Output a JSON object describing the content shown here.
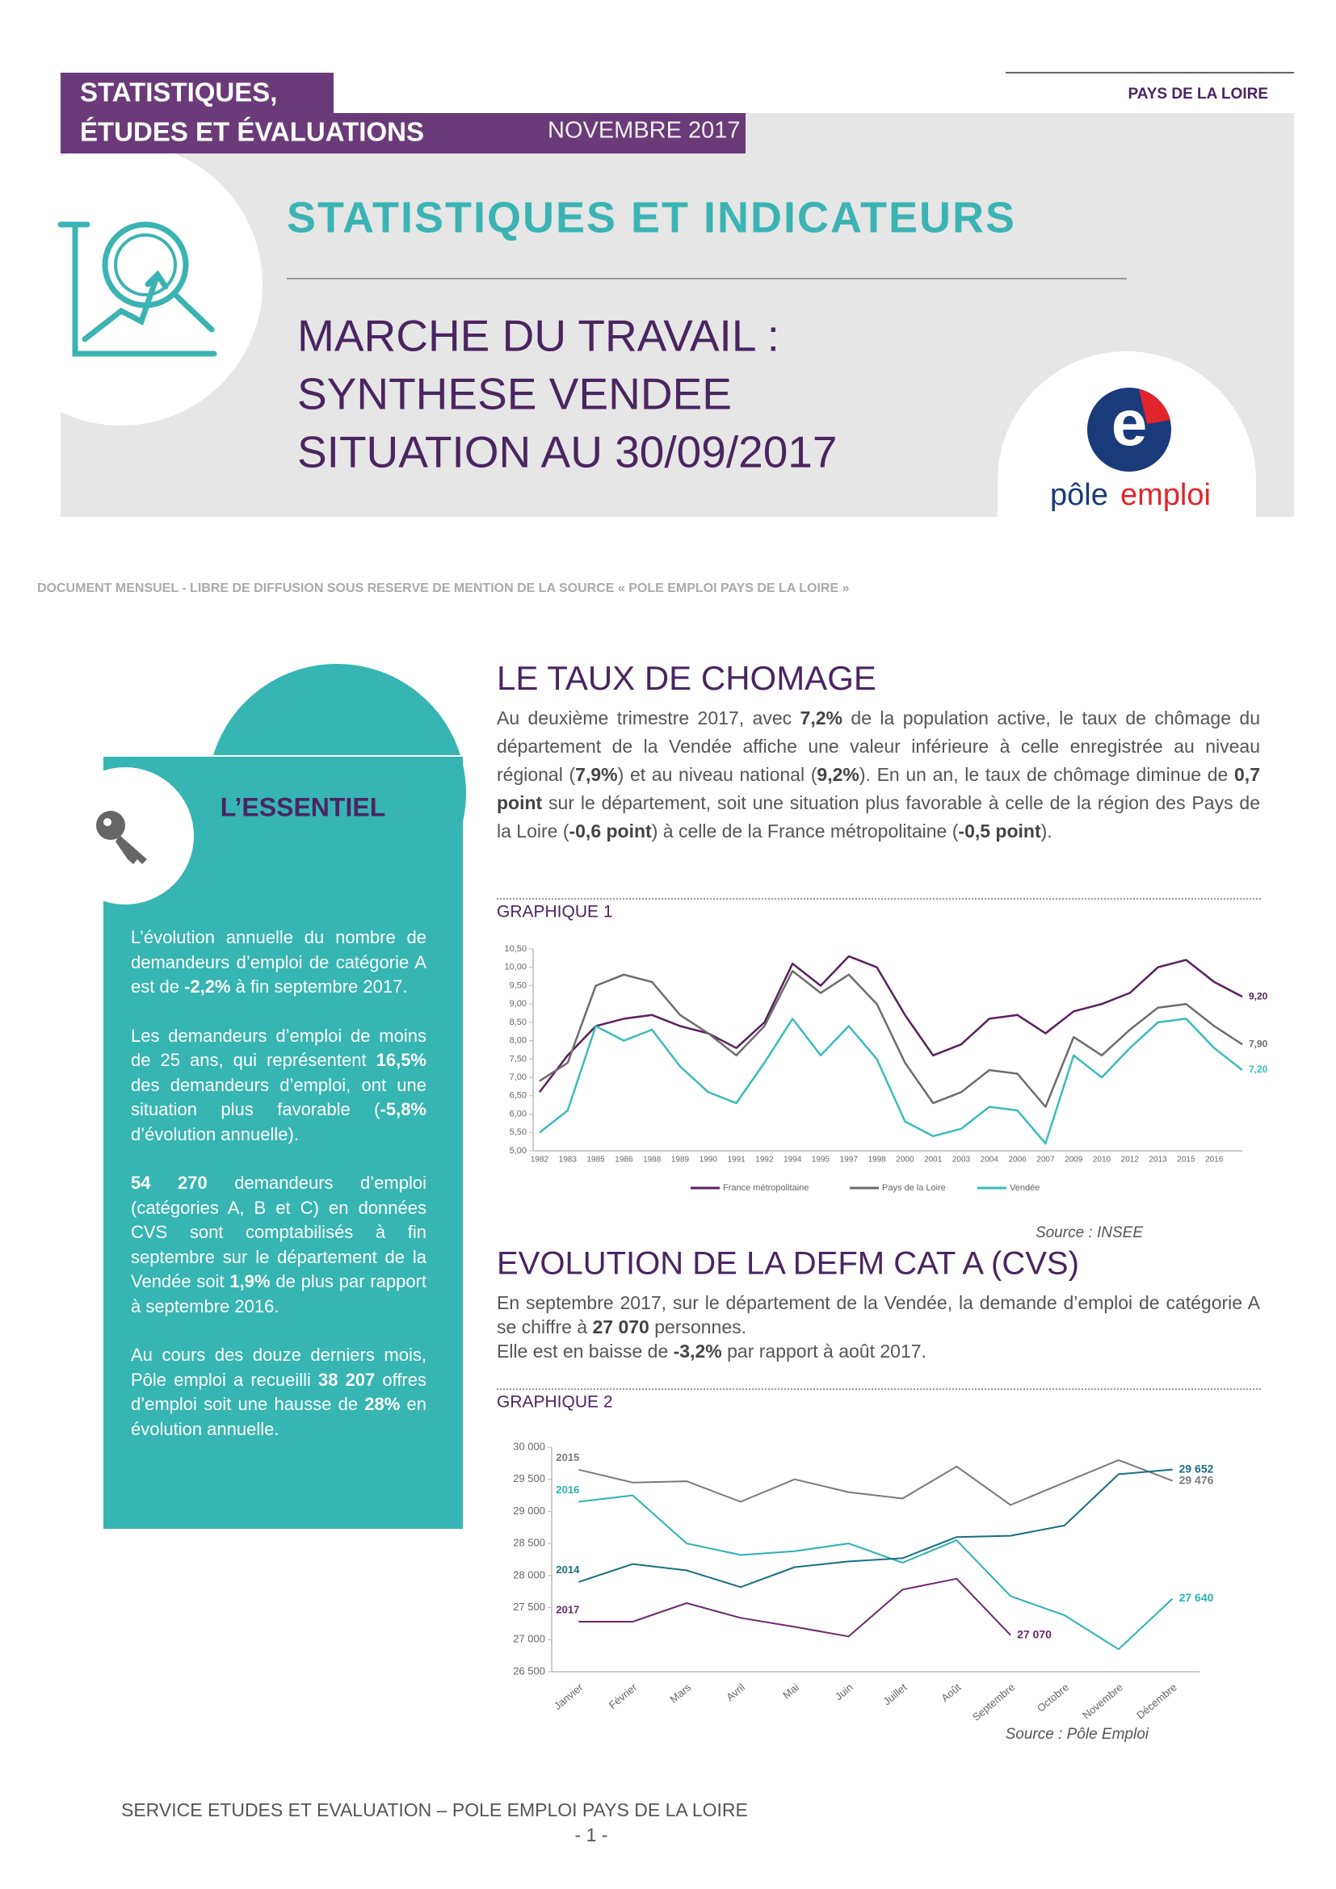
{
  "header": {
    "series_title": [
      "STATISTIQUES,",
      "ÉTUDES ET ÉVALUATIONS"
    ],
    "date": "NOVEMBRE 2017",
    "region": "PAYS DE LA LOIRE",
    "title": "STATISTIQUES ET INDICATEURS",
    "subtitle": [
      "MARCHE DU TRAVAIL :",
      "SYNTHESE VENDEE",
      "SITUATION AU 30/09/2017"
    ],
    "logo": {
      "symbol": "e",
      "text_a": "pôle",
      "text_b": "emploi"
    }
  },
  "disclaimer": "DOCUMENT MENSUEL - LIBRE DE DIFFUSION SOUS RESERVE DE MENTION DE LA SOURCE « POLE EMPLOI PAYS DE LA LOIRE »",
  "essentiel": {
    "title": "L’ESSENTIEL",
    "paragraphs": [
      [
        {
          "text": "L’évolution annuelle du nombre de demandeurs d’emploi de catégorie A est de "
        },
        {
          "text": "-2,2%",
          "bold": true
        },
        {
          "text": " à fin septembre 2017."
        }
      ],
      [
        {
          "text": "Les demandeurs d’emploi de moins de 25 ans, qui représentent "
        },
        {
          "text": "16,5%",
          "bold": true
        },
        {
          "text": " des demandeurs d’emploi, ont une situation plus favorable ("
        },
        {
          "text": "-5,8%",
          "bold": true
        },
        {
          "text": " d’évolution annuelle)."
        }
      ],
      [
        {
          "text": "54 270",
          "bold": true
        },
        {
          "text": " demandeurs d’emploi (catégories A, B et C) en données CVS sont comptabilisés à fin septembre sur le département de la Vendée soit "
        },
        {
          "text": "1,9%",
          "bold": true
        },
        {
          "text": " de plus par rapport à septembre 2016."
        }
      ],
      [
        {
          "text": "Au cours des douze derniers mois, Pôle emploi a recueilli "
        },
        {
          "text": "38 207",
          "bold": true
        },
        {
          "text": " offres d’emploi soit une hausse de "
        },
        {
          "text": "28%",
          "bold": true
        },
        {
          "text": " en évolution annuelle."
        }
      ]
    ]
  },
  "sections": [
    {
      "title": "LE TAUX DE CHOMAGE",
      "paragraphs": [
        [
          {
            "text": "Au deuxième trimestre 2017, avec "
          },
          {
            "text": "7,2%",
            "bold": true
          },
          {
            "text": " de la population active, le taux de chômage du département de la Vendée affiche une valeur inférieure à celle enregistrée au niveau régional ("
          },
          {
            "text": "7,9%",
            "bold": true
          },
          {
            "text": ") et au niveau national ("
          },
          {
            "text": "9,2%",
            "bold": true
          },
          {
            "text": "). En un an, le taux de chômage diminue de "
          },
          {
            "text": "0,7 point",
            "bold": true
          },
          {
            "text": " sur le département, soit une situation plus favorable à celle de la région des Pays de la Loire ("
          },
          {
            "text": "-0,6 point",
            "bold": true
          },
          {
            "text": ") à celle de la France métropolitaine ("
          },
          {
            "text": "-0,5 point",
            "bold": true
          },
          {
            "text": ")."
          }
        ]
      ],
      "graph_label": "GRAPHIQUE 1",
      "source": "Source : INSEE"
    },
    {
      "title": "EVOLUTION DE LA DEFM CAT A (CVS)",
      "paragraphs": [
        [
          {
            "text": "En septembre 2017, sur le département de la Vendée, la demande d’emploi de catégorie A se chiffre à "
          },
          {
            "text": "27 070",
            "bold": true
          },
          {
            "text": " personnes."
          }
        ],
        [
          {
            "text": "Elle est en baisse de "
          },
          {
            "text": "-3,2%",
            "bold": true
          },
          {
            "text": " par rapport à août 2017."
          }
        ]
      ],
      "graph_label": "GRAPHIQUE 2",
      "source": "Source : Pôle Emploi"
    }
  ],
  "footer": {
    "service": "SERVICE ETUDES ET EVALUATION – POLE EMPLOI PAYS DE LA LOIRE",
    "page": "- 1 -"
  },
  "chart_data": [
    {
      "type": "line",
      "legend": "bottom",
      "grid": false,
      "categories": [
        "1982",
        "1983",
        "1985",
        "1986",
        "1988",
        "1989",
        "1990",
        "1991",
        "1992",
        "1994",
        "1995",
        "1997",
        "1998",
        "2000",
        "2001",
        "2003",
        "2004",
        "2006",
        "2007",
        "2009",
        "2010",
        "2012",
        "2013",
        "2015",
        "2016",
        null
      ],
      "series": [
        {
          "name": "France métropolitaine",
          "color": "#5b1f5e",
          "values": [
            6.6,
            7.6,
            8.4,
            8.6,
            8.7,
            8.4,
            8.2,
            7.8,
            8.5,
            10.1,
            9.5,
            10.3,
            10.0,
            8.7,
            7.6,
            7.9,
            8.6,
            8.7,
            8.2,
            8.8,
            9.0,
            9.3,
            10.0,
            10.2,
            9.6,
            9.2
          ],
          "value_labels": [
            null,
            null,
            null,
            null,
            null,
            null,
            null,
            null,
            null,
            null,
            null,
            null,
            null,
            null,
            null,
            null,
            null,
            null,
            null,
            null,
            null,
            null,
            null,
            null,
            null,
            "9,20"
          ]
        },
        {
          "name": "Pays de la Loire",
          "color": "#6d6d6d",
          "values": [
            6.9,
            7.4,
            9.5,
            9.8,
            9.6,
            8.7,
            8.2,
            7.6,
            8.4,
            9.9,
            9.3,
            9.8,
            9.0,
            7.4,
            6.3,
            6.6,
            7.2,
            7.1,
            6.2,
            8.1,
            7.6,
            8.3,
            8.9,
            9.0,
            8.4,
            7.9
          ],
          "value_labels": [
            null,
            null,
            null,
            null,
            null,
            null,
            null,
            null,
            null,
            null,
            null,
            null,
            null,
            null,
            null,
            null,
            null,
            null,
            null,
            null,
            null,
            null,
            null,
            null,
            null,
            "7,90"
          ]
        },
        {
          "name": "Vendée",
          "color": "#3bbcbc",
          "values": [
            5.5,
            6.1,
            8.4,
            8.0,
            8.3,
            7.3,
            6.6,
            6.3,
            7.4,
            8.6,
            7.6,
            8.4,
            7.5,
            5.8,
            5.4,
            5.6,
            6.2,
            6.1,
            5.2,
            7.6,
            7.0,
            7.8,
            8.5,
            8.6,
            7.8,
            7.2
          ],
          "value_labels": [
            null,
            null,
            null,
            null,
            null,
            null,
            null,
            null,
            null,
            null,
            null,
            null,
            null,
            null,
            null,
            null,
            null,
            null,
            null,
            null,
            null,
            null,
            null,
            null,
            null,
            "7,20"
          ]
        }
      ],
      "ylim": [
        5,
        10.5
      ],
      "yticks": [
        {
          "value": 5,
          "label": "5,00"
        },
        {
          "value": 5.5,
          "label": "5,50"
        },
        {
          "value": 6,
          "label": "6,00"
        },
        {
          "value": 6.5,
          "label": "6,50"
        },
        {
          "value": 7,
          "label": "7,00"
        },
        {
          "value": 7.5,
          "label": "7,50"
        },
        {
          "value": 8,
          "label": "8,00"
        },
        {
          "value": 8.5,
          "label": "8,50"
        },
        {
          "value": 9,
          "label": "9,00"
        },
        {
          "value": 9.5,
          "label": "9,50"
        },
        {
          "value": 10,
          "label": "10,00"
        },
        {
          "value": 10.5,
          "label": "10,50"
        }
      ]
    },
    {
      "type": "line",
      "legend": "inline",
      "grid": false,
      "categories": [
        "Janvier",
        "Février",
        "Mars",
        "Avril",
        "Mai",
        "Juin",
        "Juillet",
        "Août",
        "Septembre",
        "Octobre",
        "Novembre",
        "Décembre"
      ],
      "series": [
        {
          "name": "2015",
          "color": "#7a7a7a",
          "values": [
            29650,
            29450,
            29470,
            29150,
            29500,
            29300,
            29200,
            29700,
            29100,
            29450,
            29800,
            29476
          ],
          "value_labels": [
            null,
            null,
            null,
            null,
            null,
            null,
            null,
            null,
            null,
            null,
            null,
            "29 476"
          ]
        },
        {
          "name": "2016",
          "color": "#2bb3b1",
          "values": [
            29150,
            29250,
            28500,
            28320,
            28380,
            28500,
            28200,
            28550,
            27680,
            27380,
            26850,
            27640
          ],
          "value_labels": [
            null,
            null,
            null,
            null,
            null,
            null,
            null,
            null,
            null,
            null,
            null,
            "27 640"
          ]
        },
        {
          "name": "2014",
          "color": "#1a6e80",
          "values": [
            27900,
            28180,
            28080,
            27820,
            28130,
            28220,
            28270,
            28600,
            28620,
            28780,
            29580,
            29652
          ],
          "value_labels": [
            null,
            null,
            null,
            null,
            null,
            null,
            null,
            null,
            null,
            null,
            null,
            "29 652"
          ]
        },
        {
          "name": "2017",
          "color": "#6b2a6e",
          "values": [
            27280,
            27280,
            27570,
            27340,
            27200,
            27050,
            27780,
            27950,
            27070,
            null,
            null,
            null
          ],
          "value_labels": [
            null,
            null,
            null,
            null,
            null,
            null,
            null,
            null,
            "27 070",
            null,
            null,
            null
          ]
        }
      ],
      "ylim": [
        26500,
        30000
      ],
      "yticks": [
        {
          "value": 26500,
          "label": "26 500"
        },
        {
          "value": 27000,
          "label": "27 000"
        },
        {
          "value": 27500,
          "label": "27 500"
        },
        {
          "value": 28000,
          "label": "28 000"
        },
        {
          "value": 28500,
          "label": "28 500"
        },
        {
          "value": 29000,
          "label": "29 000"
        },
        {
          "value": 29500,
          "label": "29 500"
        },
        {
          "value": 30000,
          "label": "30 000"
        }
      ]
    }
  ]
}
